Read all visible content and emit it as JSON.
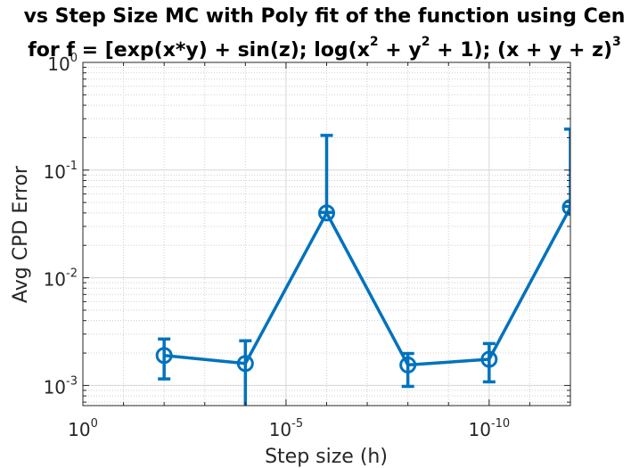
{
  "chart_data": {
    "type": "line",
    "title_line1": "vs Step Size MC with Poly fit of the function using Cen",
    "title_line2": {
      "p1": "for f = [exp(x*y) + sin(z); log(x",
      "sup1": "2",
      "p2": " + y",
      "sup2": "2",
      "p3": " + 1); (x + y + z)",
      "sup3": "3"
    },
    "xlabel": "Step size (h)",
    "ylabel": "Avg CPD Error",
    "x_scale": "log",
    "x_reversed": true,
    "y_scale": "log",
    "xlim": [
      1,
      1e-12
    ],
    "ylim": [
      0.00065,
      1
    ],
    "grid": true,
    "x_ticks": [
      {
        "value": 1,
        "base": "10",
        "exp": "0"
      },
      {
        "value": 1e-05,
        "base": "10",
        "exp": "-5"
      },
      {
        "value": 1e-10,
        "base": "10",
        "exp": "-10"
      }
    ],
    "y_ticks": [
      {
        "value": 0.001,
        "base": "10",
        "exp": "-3"
      },
      {
        "value": 0.01,
        "base": "10",
        "exp": "-2"
      },
      {
        "value": 0.1,
        "base": "10",
        "exp": "-1"
      },
      {
        "value": 1,
        "base": "10",
        "exp": "0"
      }
    ],
    "series": [
      {
        "color": "#0072BD",
        "marker": "circle",
        "x": [
          0.01,
          0.0001,
          1e-06,
          1e-08,
          1e-10,
          1e-12
        ],
        "y": [
          0.0019,
          0.0016,
          0.04,
          0.00155,
          0.00175,
          0.045
        ],
        "y_low": [
          0.00115,
          0.00063,
          0.0405,
          0.00098,
          0.00108,
          0.046
        ],
        "y_high": [
          0.0027,
          0.0026,
          0.21,
          0.00198,
          0.00245,
          0.24
        ]
      }
    ]
  }
}
